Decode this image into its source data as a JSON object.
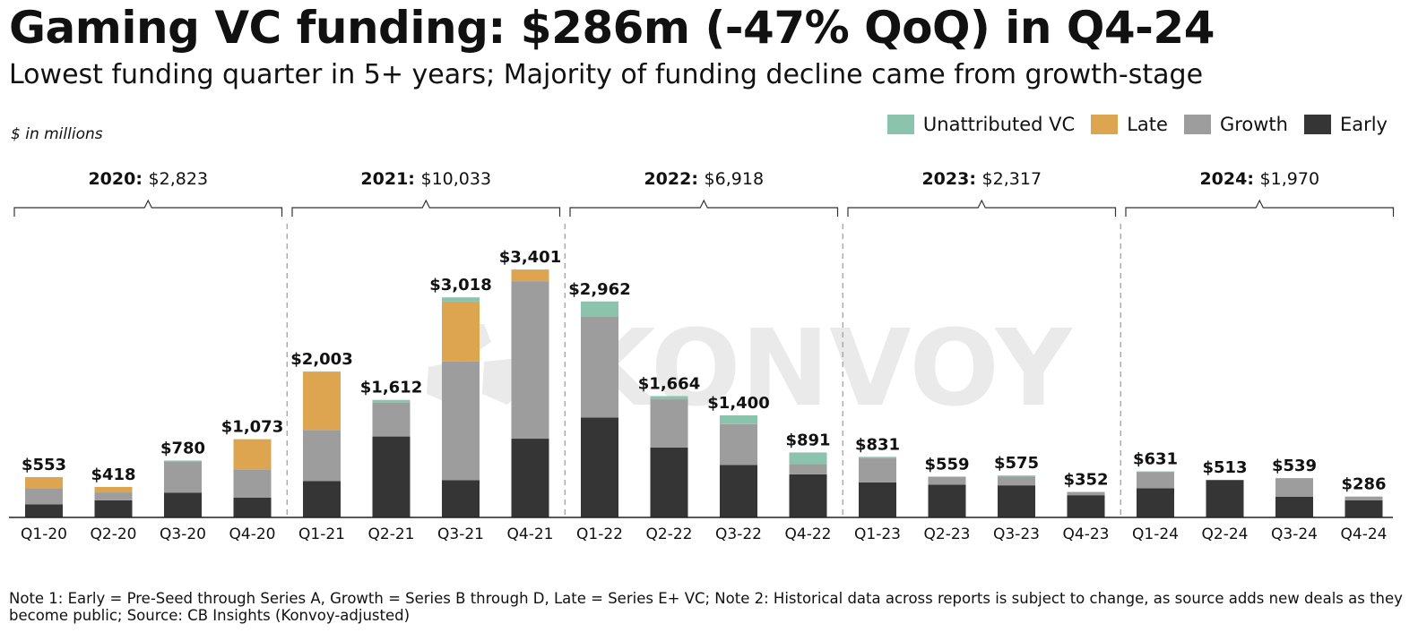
{
  "title": "Gaming VC funding: $286m (-47% QoQ) in Q4-24",
  "subtitle": "Lowest funding quarter in 5+ years; Majority of funding decline came from growth-stage",
  "unit_note": "$ in millions",
  "watermark": "KONVOY",
  "note": "Note 1: Early = Pre-Seed through Series A, Growth = Series B through D, Late = Series E+ VC; Note 2: Historical data across reports is subject to change, as source adds new deals as they become public; Source: CB Insights (Konvoy-adjusted)",
  "legend": [
    {
      "name": "Unattributed VC",
      "color": "#8bc3ad"
    },
    {
      "name": "Late",
      "color": "#dea550"
    },
    {
      "name": "Growth",
      "color": "#9d9d9d"
    },
    {
      "name": "Early",
      "color": "#353535"
    }
  ],
  "chart_data": {
    "type": "bar",
    "stacked": true,
    "categories": [
      "Q1-20",
      "Q2-20",
      "Q3-20",
      "Q4-20",
      "Q1-21",
      "Q2-21",
      "Q3-21",
      "Q4-21",
      "Q1-22",
      "Q2-22",
      "Q3-22",
      "Q4-22",
      "Q1-23",
      "Q2-23",
      "Q3-23",
      "Q4-23",
      "Q1-24",
      "Q2-24",
      "Q3-24",
      "Q4-24"
    ],
    "totals": [
      553,
      418,
      780,
      1073,
      2003,
      1612,
      3018,
      3401,
      2962,
      1664,
      1400,
      891,
      831,
      559,
      575,
      352,
      631,
      513,
      539,
      286
    ],
    "total_labels": [
      "$553",
      "$418",
      "$780",
      "$1,073",
      "$2,003",
      "$1,612",
      "$3,018",
      "$3,401",
      "$2,962",
      "$1,664",
      "$1,400",
      "$891",
      "$831",
      "$559",
      "$575",
      "$352",
      "$631",
      "$513",
      "$539",
      "$286"
    ],
    "series": [
      {
        "name": "Early",
        "color": "#353535",
        "values": [
          180,
          235,
          340,
          270,
          500,
          1110,
          510,
          1080,
          1370,
          960,
          720,
          590,
          480,
          450,
          440,
          305,
          400,
          513,
          285,
          236
        ]
      },
      {
        "name": "Growth",
        "color": "#9d9d9d",
        "values": [
          220,
          108,
          430,
          390,
          700,
          462,
          1630,
          2160,
          1385,
          660,
          560,
          140,
          330,
          109,
          118,
          42,
          220,
          0,
          254,
          50
        ]
      },
      {
        "name": "Late",
        "color": "#dea550",
        "values": [
          153,
          75,
          0,
          413,
          790,
          0,
          820,
          160,
          0,
          0,
          0,
          0,
          0,
          0,
          0,
          0,
          0,
          0,
          0,
          0
        ]
      },
      {
        "name": "Unattributed VC",
        "color": "#8bc3ad",
        "values": [
          0,
          0,
          10,
          0,
          13,
          40,
          58,
          1,
          207,
          44,
          120,
          161,
          21,
          0,
          17,
          5,
          11,
          0,
          0,
          0
        ]
      }
    ],
    "year_groups": [
      {
        "year": "2020:",
        "total": "$2,823"
      },
      {
        "year": "2021:",
        "total": "$10,033"
      },
      {
        "year": "2022:",
        "total": "$6,918"
      },
      {
        "year": "2023:",
        "total": "$2,317"
      },
      {
        "year": "2024:",
        "total": "$1,970"
      }
    ],
    "ylim": [
      0,
      3500
    ],
    "legend_position": "top-right"
  }
}
